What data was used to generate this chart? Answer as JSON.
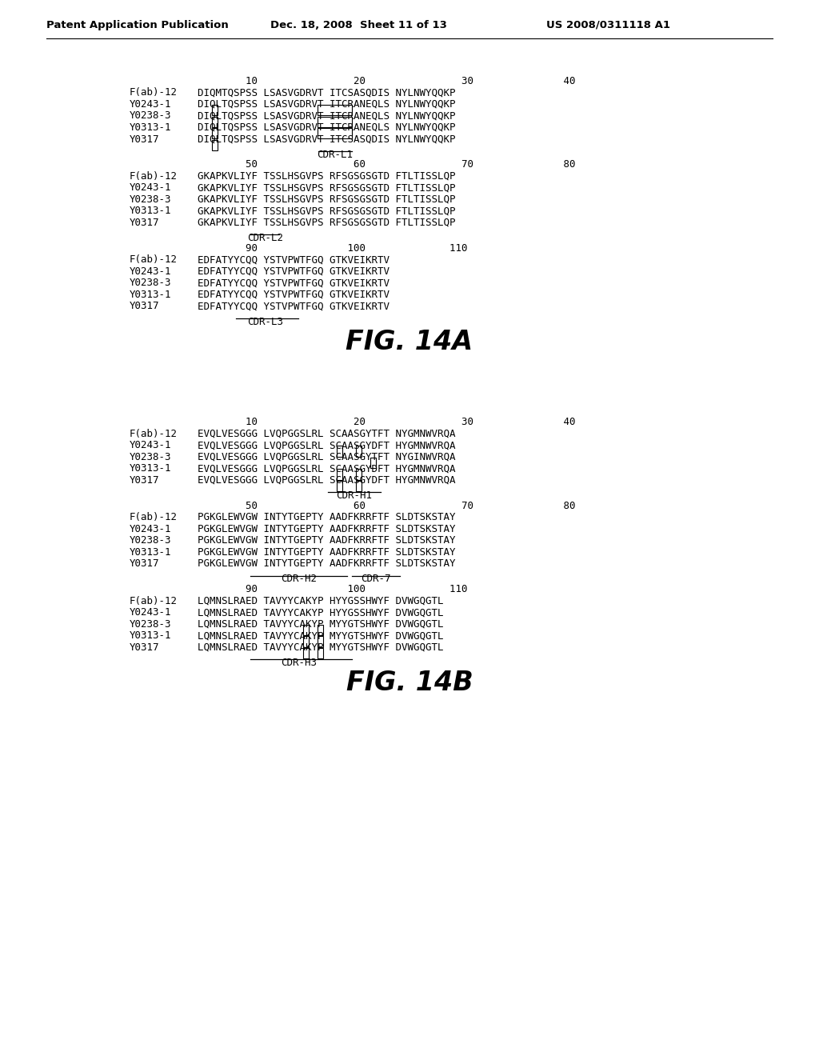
{
  "header_left": "Patent Application Publication",
  "header_mid": "Dec. 18, 2008  Sheet 11 of 13",
  "header_right": "US 2008/0311118 A1",
  "fig14a_title": "FIG. 14A",
  "fig14b_title": "FIG. 14B",
  "fig14a_block1": [
    [
      "F(ab)-12",
      "DIQMTQSPSS LSASVGDRVT ITCSASQDIS NYLNWYQQKP"
    ],
    [
      "Y0243-1",
      "DIQLTQSPSS LSASVGDRVT ITCRANEQLS NYLNWYQQKP"
    ],
    [
      "Y0238-3",
      "DIQLTQSPSS LSASVGDRVT ITCRANEQLS NYLNWYQQKP"
    ],
    [
      "Y0313-1",
      "DIQLTQSPSS LSASVGDRVT ITCRANEQLS NYLNWYQQKP"
    ],
    [
      "Y0317",
      "DIQLTQSPSS LSASVGDRVT ITCSASQDIS NYLNWYQQKP"
    ]
  ],
  "fig14a_block2": [
    [
      "F(ab)-12",
      "GKAPKVLIYF TSSLHSGVPS RFSGSGSGTD FTLTISSLQP"
    ],
    [
      "Y0243-1",
      "GKAPKVLIYF TSSLHSGVPS RFSGSGSGTD FTLTISSLQP"
    ],
    [
      "Y0238-3",
      "GKAPKVLIYF TSSLHSGVPS RFSGSGSGTD FTLTISSLQP"
    ],
    [
      "Y0313-1",
      "GKAPKVLIYF TSSLHSGVPS RFSGSGSGTD FTLTISSLQP"
    ],
    [
      "Y0317",
      "GKAPKVLIYF TSSLHSGVPS RFSGSGSGTD FTLTISSLQP"
    ]
  ],
  "fig14a_block3": [
    [
      "F(ab)-12",
      "EDFATYYCQQ YSTVPWTFGQ GTKVEIKRTV"
    ],
    [
      "Y0243-1",
      "EDFATYYCQQ YSTVPWTFGQ GTKVEIKRTV"
    ],
    [
      "Y0238-3",
      "EDFATYYCQQ YSTVPWTFGQ GTKVEIKRTV"
    ],
    [
      "Y0313-1",
      "EDFATYYCQQ YSTVPWTFGQ GTKVEIKRTV"
    ],
    [
      "Y0317",
      "EDFATYYCQQ YSTVPWTFGQ GTKVEIKRTV"
    ]
  ],
  "fig14b_block1": [
    [
      "F(ab)-12",
      "EVQLVESGGG LVQPGGSLRL SCAASGYTFT NYGMNWVRQA"
    ],
    [
      "Y0243-1",
      "EVQLVESGGG LVQPGGSLRL SCAASGYDFT HYGMNWVRQA"
    ],
    [
      "Y0238-3",
      "EVQLVESGGG LVQPGGSLRL SCAASGYTFT NYGINWVRQA"
    ],
    [
      "Y0313-1",
      "EVQLVESGGG LVQPGGSLRL SCAASGYDFT HYGMNWVRQA"
    ],
    [
      "Y0317",
      "EVQLVESGGG LVQPGGSLRL SCAASGYDFT HYGMNWVRQA"
    ]
  ],
  "fig14b_block2": [
    [
      "F(ab)-12",
      "PGKGLEWVGW INTYTGEPTY AADFKRRFTF SLDTSKSTAY"
    ],
    [
      "Y0243-1",
      "PGKGLEWVGW INTYTGEPTY AADFKRRFTF SLDTSKSTAY"
    ],
    [
      "Y0238-3",
      "PGKGLEWVGW INTYTGEPTY AADFKRRFTF SLDTSKSTAY"
    ],
    [
      "Y0313-1",
      "PGKGLEWVGW INTYTGEPTY AADFKRRFTF SLDTSKSTAY"
    ],
    [
      "Y0317",
      "PGKGLEWVGW INTYTGEPTY AADFKRRFTF SLDTSKSTAY"
    ]
  ],
  "fig14b_block3": [
    [
      "F(ab)-12",
      "LQMNSLRAED TAVYYCAKYP HYYGSSHWYF DVWGQGTL"
    ],
    [
      "Y0243-1",
      "LQMNSLRAED TAVYYCAKYP HYYGSSHWYF DVWGQGTL"
    ],
    [
      "Y0238-3",
      "LQMNSLRAED TAVYYCAKYP MYYGTSHWYF DVWGQGTL"
    ],
    [
      "Y0313-1",
      "LQMNSLRAED TAVYYCAKYP MYYGTSHWYF DVWGQGTL"
    ],
    [
      "Y0317",
      "LQMNSLRAED TAVYYCAKYP MYYGTSHWYF DVWGQGTL"
    ]
  ],
  "num_row_14a_1": "        10                20                30               40",
  "num_row_14a_2": "        50                60                70               80",
  "num_row_14a_3": "        90               100              110",
  "num_row_14b_1": "        10                20                30               40",
  "num_row_14b_2": "        50                60                70               80",
  "num_row_14b_3": "        90               100              110",
  "bg_color": "#ffffff",
  "mono_size": 9.0,
  "header_size": 9.5,
  "fig_title_size": 24,
  "cdr_label_size": 9.0
}
